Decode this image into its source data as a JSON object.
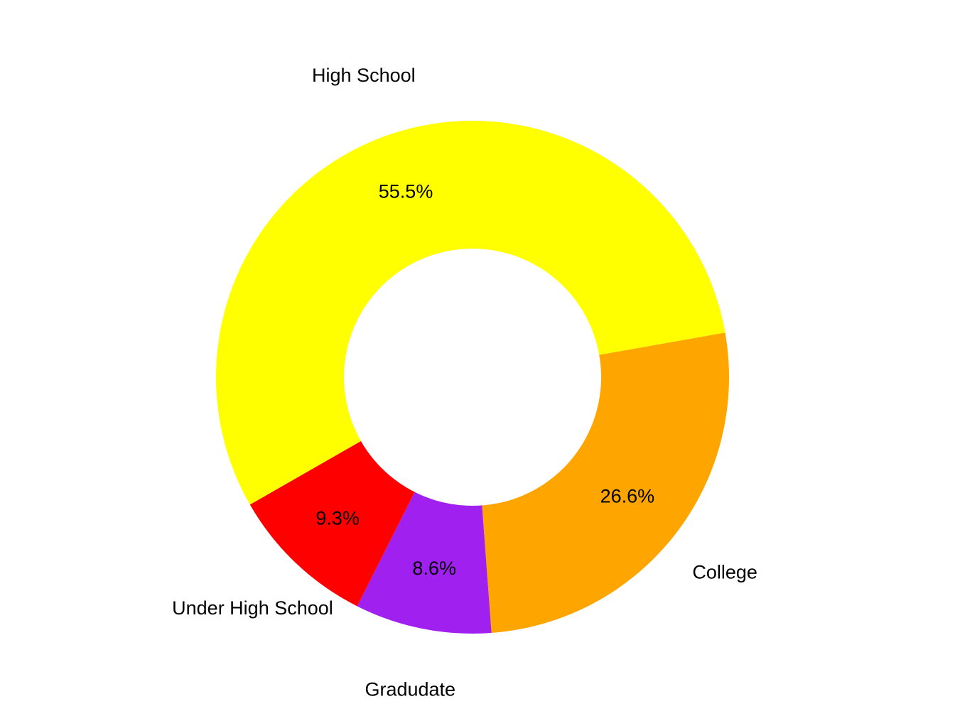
{
  "chart_data": {
    "type": "pie",
    "donut": true,
    "title": "",
    "slices": [
      {
        "label": "College",
        "value": 26.6,
        "value_label": "26.6%",
        "color": "#FFA500"
      },
      {
        "label": "Gradudate",
        "value": 8.6,
        "value_label": "8.6%",
        "color": "#A020F0"
      },
      {
        "label": "Under High School",
        "value": 9.3,
        "value_label": "9.3%",
        "color": "#FF0000"
      },
      {
        "label": "High School",
        "value": 55.5,
        "value_label": "55.5%",
        "color": "#FFFF00"
      }
    ],
    "legend": "none"
  }
}
